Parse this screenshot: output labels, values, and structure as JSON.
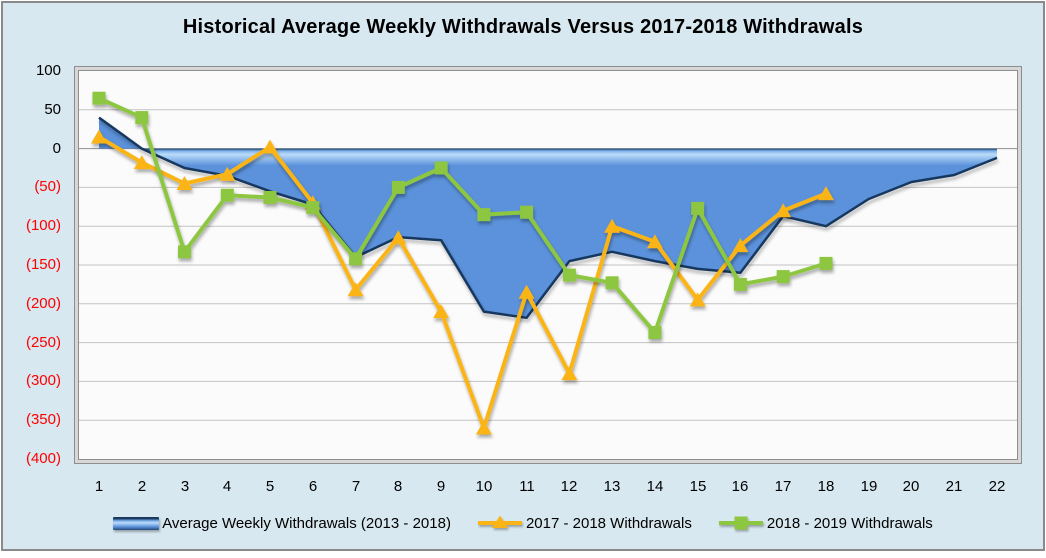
{
  "title": "Historical Average Weekly Withdrawals Versus 2017-2018 Withdrawals",
  "colors": {
    "background": "#D8E8F0",
    "plot_background": "#FBFBFB",
    "gridline": "#C3C3C3",
    "zero_line": "#8F8F8F",
    "negative_tick": "#FF0000",
    "area_fill": "#5B92DB",
    "area_highlight": "#BBDCFA",
    "area_edge": "#17375E",
    "series_orange": "#FBB416",
    "series_green": "#8DC63F"
  },
  "chart_data": {
    "type": "area",
    "x": [
      1,
      2,
      3,
      4,
      5,
      6,
      7,
      8,
      9,
      10,
      11,
      12,
      13,
      14,
      15,
      16,
      17,
      18,
      19,
      20,
      21,
      22
    ],
    "series": [
      {
        "name": "Average Weekly Withdrawals (2013 - 2018)",
        "type": "area",
        "marker": "none",
        "color": "#5B92DB",
        "values": [
          40,
          0,
          -25,
          -35,
          -55,
          -72,
          -140,
          -114,
          -118,
          -210,
          -218,
          -145,
          -133,
          -145,
          -155,
          -160,
          -87,
          -100,
          -65,
          -43,
          -34,
          -12
        ]
      },
      {
        "name": "2017 - 2018 Withdrawals",
        "type": "line",
        "marker": "triangle",
        "color": "#FBB416",
        "values": [
          15,
          -18,
          -45,
          -33,
          2,
          -70,
          -182,
          -115,
          -210,
          -360,
          -185,
          -290,
          -100,
          -120,
          -195,
          -125,
          -80,
          -58
        ]
      },
      {
        "name": "2018 - 2019 Withdrawals",
        "type": "line",
        "marker": "square",
        "color": "#8DC63F",
        "values": [
          65,
          40,
          -133,
          -60,
          -63,
          -76,
          -142,
          -50,
          -25,
          -85,
          -82,
          -163,
          -173,
          -237,
          -77,
          -175,
          -165,
          -148
        ]
      }
    ],
    "ylim": [
      -400,
      100
    ],
    "ytick_step": 50,
    "ytick_labels": [
      "100",
      "50",
      "0",
      "(50)",
      "(100)",
      "(150)",
      "(200)",
      "(250)",
      "(300)",
      "(350)",
      "(400)"
    ],
    "grid": true,
    "legend_position": "bottom"
  }
}
